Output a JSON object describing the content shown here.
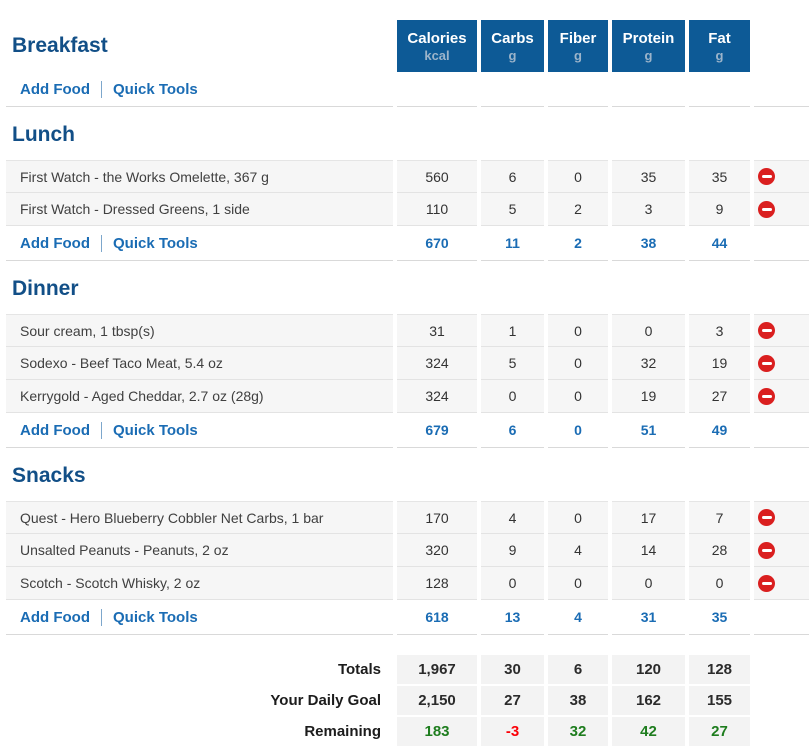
{
  "columns": [
    {
      "label": "Calories",
      "unit": "kcal"
    },
    {
      "label": "Carbs",
      "unit": "g"
    },
    {
      "label": "Fiber",
      "unit": "g"
    },
    {
      "label": "Protein",
      "unit": "g"
    },
    {
      "label": "Fat",
      "unit": "g"
    }
  ],
  "links": {
    "add_food": "Add Food",
    "quick_tools": "Quick Tools"
  },
  "sections": [
    {
      "name": "Breakfast",
      "foods": [],
      "totals": null
    },
    {
      "name": "Lunch",
      "foods": [
        {
          "name": "First Watch - the Works Omelette, 367 g",
          "values": [
            "560",
            "6",
            "0",
            "35",
            "35"
          ]
        },
        {
          "name": "First Watch - Dressed Greens, 1 side",
          "values": [
            "110",
            "5",
            "2",
            "3",
            "9"
          ]
        }
      ],
      "totals": [
        "670",
        "11",
        "2",
        "38",
        "44"
      ]
    },
    {
      "name": "Dinner",
      "foods": [
        {
          "name": "Sour cream, 1 tbsp(s)",
          "values": [
            "31",
            "1",
            "0",
            "0",
            "3"
          ]
        },
        {
          "name": "Sodexo - Beef Taco Meat, 5.4 oz",
          "values": [
            "324",
            "5",
            "0",
            "32",
            "19"
          ]
        },
        {
          "name": "Kerrygold - Aged Cheddar, 2.7 oz (28g)",
          "values": [
            "324",
            "0",
            "0",
            "19",
            "27"
          ]
        }
      ],
      "totals": [
        "679",
        "6",
        "0",
        "51",
        "49"
      ]
    },
    {
      "name": "Snacks",
      "foods": [
        {
          "name": "Quest - Hero Blueberry Cobbler Net Carbs, 1 bar",
          "values": [
            "170",
            "4",
            "0",
            "17",
            "7"
          ]
        },
        {
          "name": "Unsalted Peanuts - Peanuts, 2 oz",
          "values": [
            "320",
            "9",
            "4",
            "14",
            "28"
          ]
        },
        {
          "name": "Scotch - Scotch Whisky, 2 oz",
          "values": [
            "128",
            "0",
            "0",
            "0",
            "0"
          ]
        }
      ],
      "totals": [
        "618",
        "13",
        "4",
        "31",
        "35"
      ]
    }
  ],
  "summary": {
    "totals": {
      "label": "Totals",
      "values": [
        "1,967",
        "30",
        "6",
        "120",
        "128"
      ]
    },
    "goal": {
      "label": "Your Daily Goal",
      "values": [
        "2,150",
        "27",
        "38",
        "162",
        "155"
      ]
    },
    "remaining": {
      "label": "Remaining",
      "values": [
        "183",
        "-3",
        "32",
        "42",
        "27"
      ],
      "colors": [
        "green",
        "red",
        "green",
        "green",
        "green"
      ]
    }
  },
  "icons": {
    "delete": "minus-circle-icon"
  },
  "colors": {
    "header_box_blue": "#0d5a96",
    "header_unit_gray": "#9cb4ca",
    "section_title_blue": "#124f87",
    "link_blue": "#1a6cb4",
    "delete_red": "#da1f1f",
    "remaining_green": "#1e7d1e",
    "remaining_red": "#fb0007",
    "row_gray": "#f6f6f6"
  }
}
